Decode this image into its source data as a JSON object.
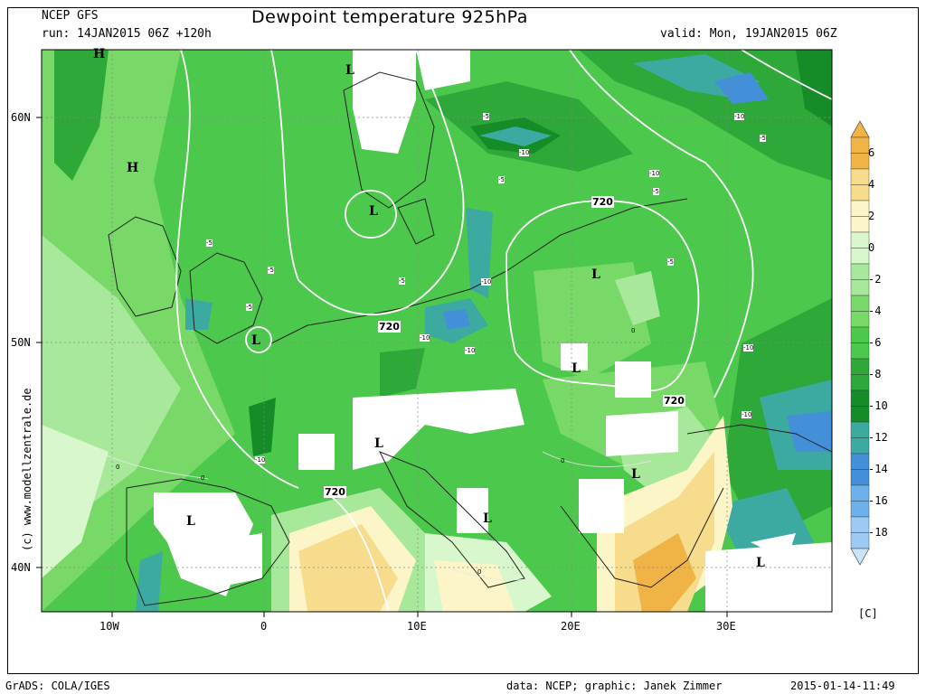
{
  "header": {
    "source": "NCEP GFS",
    "run": "run: 14JAN2015 06Z +120h",
    "title": "Dewpoint temperature 925hPa",
    "valid": "valid: Mon, 19JAN2015 06Z"
  },
  "axes": {
    "lat_labels": [
      "60N",
      "50N",
      "40N"
    ],
    "lon_labels": [
      "10W",
      "0",
      "10E",
      "20E",
      "30E"
    ]
  },
  "colorbar": {
    "labels": [
      "6",
      "4",
      "2",
      "0",
      "-2",
      "-4",
      "-6",
      "-8",
      "-10",
      "-12",
      "-14",
      "-16",
      "-18"
    ],
    "unit": "[C]",
    "colors": [
      "#f0b446",
      "#f6dc8c",
      "#fbf5c8",
      "#d8f7cc",
      "#a8e89a",
      "#78d868",
      "#4cc84c",
      "#2ea838",
      "#168c28",
      "#3caaa0",
      "#4490d8",
      "#6cb0ec",
      "#9ccaf4"
    ]
  },
  "map": {
    "pressure_labels": [
      "H",
      "H",
      "L",
      "L",
      "L",
      "L",
      "L",
      "L",
      "L",
      "L",
      "L",
      "L"
    ],
    "contour_labels": [
      "720",
      "720",
      "720",
      "720"
    ],
    "isotherm_labels": [
      "-5",
      "-5",
      "-5",
      "-5",
      "-5",
      "-5",
      "-5",
      "-5",
      "-5",
      "-10",
      "-10",
      "-10",
      "-10",
      "-10",
      "-10",
      "-10",
      "-10",
      "-10",
      "0",
      "0",
      "0",
      "0",
      "0"
    ]
  },
  "side_text": "(c) www.modellzentrale.de",
  "footer": {
    "left": "GrADS: COLA/IGES",
    "center": "data: NCEP; graphic: Janek Zimmer",
    "right": "2015-01-14-11:49"
  }
}
